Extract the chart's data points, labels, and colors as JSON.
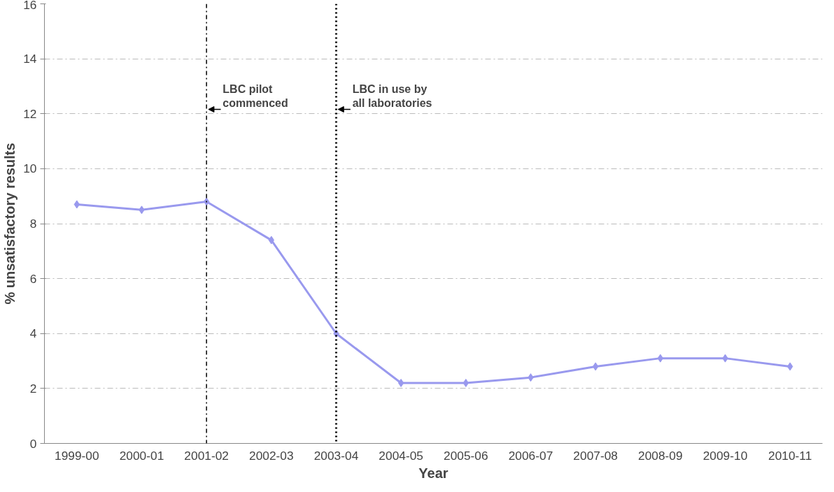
{
  "chart_data": {
    "type": "line",
    "xlabel": "Year",
    "ylabel": "% unsatisfactory results",
    "categories": [
      "1999-00",
      "2000-01",
      "2001-02",
      "2002-03",
      "2003-04",
      "2004-05",
      "2005-06",
      "2006-07",
      "2007-08",
      "2008-09",
      "2009-10",
      "2010-11"
    ],
    "series": [
      {
        "color": "#9999ee",
        "values": [
          8.7,
          8.5,
          8.8,
          7.4,
          4.0,
          2.2,
          2.2,
          2.4,
          2.8,
          3.1,
          3.1,
          2.8
        ]
      }
    ],
    "ylim": [
      0,
      16
    ],
    "yticks": [
      0,
      2,
      4,
      6,
      8,
      10,
      12,
      14,
      16
    ],
    "ref_lines": [
      {
        "axis": "x",
        "value": "2001-02",
        "label": "LBC pilot\ncommenced",
        "line_style": "dashdot",
        "color": "#000000"
      },
      {
        "axis": "x",
        "value": "2003-04",
        "label": "LBC in use by\nall laboratories",
        "line_style": "dotted",
        "color": "#000000"
      }
    ],
    "grid": "y",
    "marker": "diamond",
    "line_style": "solid"
  }
}
